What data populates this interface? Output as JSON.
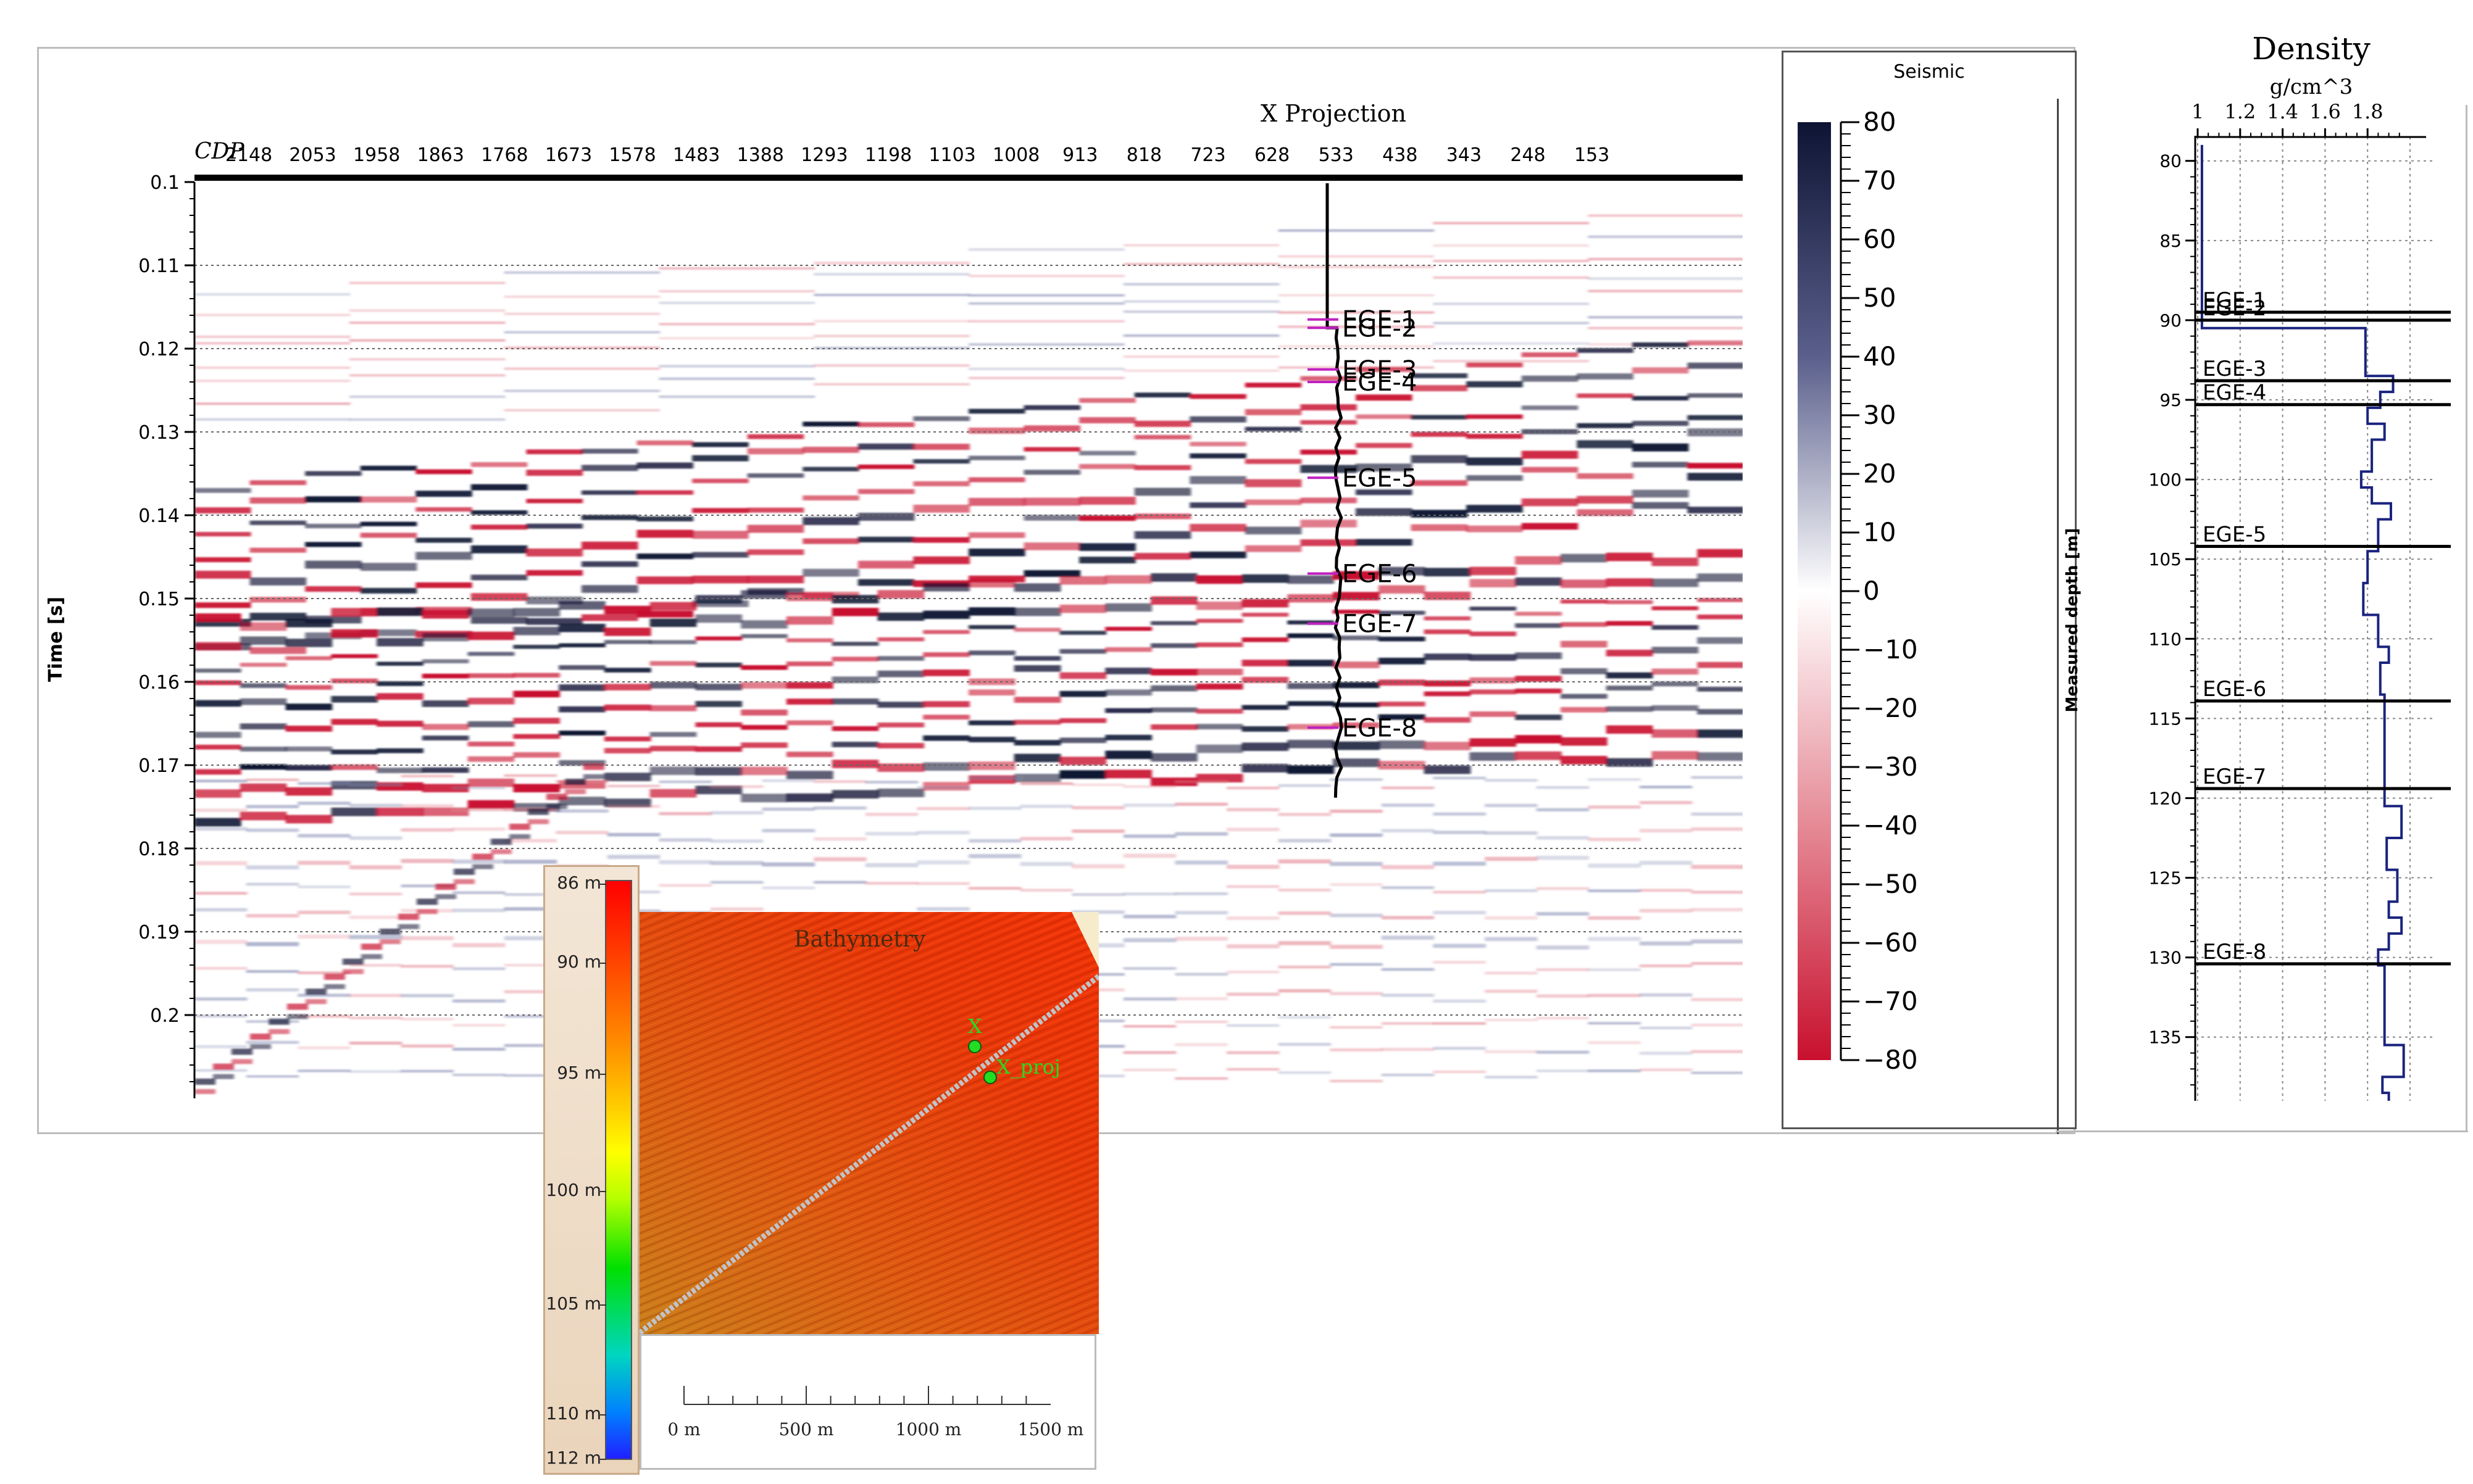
{
  "seismic": {
    "projection_title": "X Projection",
    "cdp_label": "CDP",
    "cdp_ticks": [
      "2148",
      "2053",
      "1958",
      "1863",
      "1768",
      "1673",
      "1578",
      "1483",
      "1388",
      "1293",
      "1198",
      "1103",
      "1008",
      "913",
      "818",
      "723",
      "628",
      "533",
      "438",
      "343",
      "248",
      "153"
    ],
    "time_axis_label": "Time [s]",
    "time_ticks": [
      "0.1",
      "0.11",
      "0.12",
      "0.13",
      "0.14",
      "0.15",
      "0.16",
      "0.17",
      "0.18",
      "0.19",
      "0.2"
    ],
    "horizons": [
      {
        "name": "EGE-1",
        "t": 0.1165
      },
      {
        "name": "EGE-2",
        "t": 0.1175
      },
      {
        "name": "EGE-3",
        "t": 0.1225
      },
      {
        "name": "EGE-4",
        "t": 0.124
      },
      {
        "name": "EGE-5",
        "t": 0.1355
      },
      {
        "name": "EGE-6",
        "t": 0.147
      },
      {
        "name": "EGE-7",
        "t": 0.153
      },
      {
        "name": "EGE-8",
        "t": 0.1655
      }
    ],
    "colorbar": {
      "title": "Seismic",
      "ticks": [
        "80",
        "70",
        "60",
        "50",
        "40",
        "30",
        "20",
        "10",
        "0",
        "−10",
        "−20",
        "−30",
        "−40",
        "−50",
        "−60",
        "−70",
        "−80"
      ],
      "colors": {
        "high": "#0d1433",
        "mid": "#ffffff",
        "low": "#c8102e"
      }
    }
  },
  "chart_data": [
    {
      "type": "heatmap",
      "title": "X Projection",
      "xlabel": "CDP",
      "ylabel": "Time [s]",
      "x_ticks": [
        2148,
        2053,
        1958,
        1863,
        1768,
        1673,
        1578,
        1483,
        1388,
        1293,
        1198,
        1103,
        1008,
        913,
        818,
        723,
        628,
        533,
        438,
        343,
        248,
        153
      ],
      "y_ticks": [
        0.1,
        0.11,
        0.12,
        0.13,
        0.14,
        0.15,
        0.16,
        0.17,
        0.18,
        0.19,
        0.2
      ],
      "ylim": [
        0.1,
        0.21
      ],
      "colorbar": {
        "label": "Seismic",
        "range": [
          -80,
          80
        ]
      },
      "horizons": [
        "EGE-1",
        "EGE-2",
        "EGE-3",
        "EGE-4",
        "EGE-5",
        "EGE-6",
        "EGE-7",
        "EGE-8"
      ],
      "well_cdp": 530
    },
    {
      "type": "line",
      "title": "Density",
      "xlabel": "g/cm^3",
      "ylabel": "Measured depth [m]",
      "x_ticks": [
        "1",
        "1.2",
        "1.4",
        "1.6",
        "1.8"
      ],
      "xlim": [
        1,
        2.0
      ],
      "y_ticks": [
        80,
        85,
        90,
        95,
        100,
        105,
        110,
        115,
        120,
        125,
        130,
        135
      ],
      "ylim": [
        78.5,
        139
      ],
      "series": [
        {
          "depth": [
            79,
            90.5,
            90.5,
            93.5,
            93.5,
            94.5,
            94.5,
            95.5,
            95.5,
            96.5,
            96.5,
            97.5,
            97.5,
            99.5,
            99.5,
            100.5,
            100.5,
            101.5,
            101.5,
            102.5,
            102.5,
            104.5,
            104.5,
            106.5,
            106.5,
            108.5,
            108.5,
            110.5,
            110.5,
            111.5,
            111.5,
            113.5,
            113.5,
            120.5,
            120.5,
            122.5,
            122.5,
            124.5,
            124.5,
            126.5,
            126.5,
            127.5,
            127.5,
            128.5,
            128.5,
            129.5,
            129.5,
            130.5,
            130.5,
            135.5,
            135.5,
            137.5,
            137.5,
            138.5,
            138.5,
            139
          ],
          "value": [
            1.02,
            1.02,
            1.79,
            1.79,
            1.92,
            1.92,
            1.86,
            1.86,
            1.8,
            1.8,
            1.88,
            1.88,
            1.82,
            1.82,
            1.77,
            1.77,
            1.82,
            1.82,
            1.91,
            1.91,
            1.85,
            1.85,
            1.8,
            1.8,
            1.78,
            1.78,
            1.85,
            1.85,
            1.9,
            1.9,
            1.86,
            1.86,
            1.88,
            1.88,
            1.96,
            1.96,
            1.89,
            1.89,
            1.94,
            1.94,
            1.9,
            1.9,
            1.96,
            1.96,
            1.9,
            1.9,
            1.85,
            1.85,
            1.88,
            1.88,
            1.97,
            1.97,
            1.87,
            1.87,
            1.9,
            1.9
          ]
        }
      ],
      "horizons": [
        {
          "name": "EGE-1",
          "depth": 89.5
        },
        {
          "name": "EGE-2",
          "depth": 90.0
        },
        {
          "name": "EGE-3",
          "depth": 93.8
        },
        {
          "name": "EGE-4",
          "depth": 95.3
        },
        {
          "name": "EGE-5",
          "depth": 104.2
        },
        {
          "name": "EGE-6",
          "depth": 113.9
        },
        {
          "name": "EGE-7",
          "depth": 119.4
        },
        {
          "name": "EGE-8",
          "depth": 130.4
        }
      ]
    }
  ],
  "density": {
    "title": "Density",
    "unit": "g/cm^3",
    "x_ticks": [
      "1",
      "1.2",
      "1.4",
      "1.6",
      "1.8"
    ],
    "depth_label": "Measured depth [m]",
    "depth_ticks": [
      "80",
      "85",
      "90",
      "95",
      "100",
      "105",
      "110",
      "115",
      "120",
      "125",
      "130",
      "135"
    ],
    "line_color": "#1a237e"
  },
  "bathymetry": {
    "title": "Bathymetry",
    "depth_ticks": [
      "86 m",
      "90 m",
      "95 m",
      "100 m",
      "105 m",
      "110 m",
      "112 m"
    ],
    "markers": {
      "x": "X",
      "x_proj": "X_proj"
    },
    "scale_labels": [
      "0 m",
      "500 m",
      "1000 m",
      "1500 m"
    ],
    "marker_color": "#22dd22"
  }
}
